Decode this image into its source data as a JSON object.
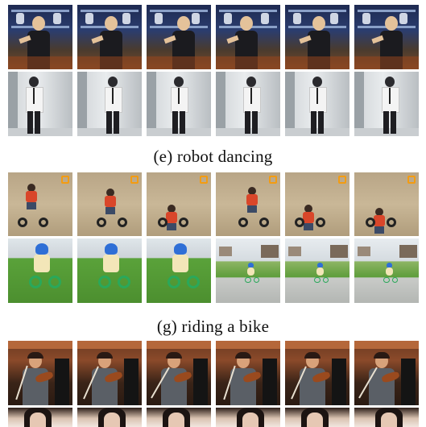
{
  "captions": {
    "robot_dancing": "(e) robot dancing",
    "riding_bike": "(g) riding a bike"
  },
  "rows": [
    {
      "clip": "lab",
      "frames": 6
    },
    {
      "clip": "hall",
      "frames": 6
    },
    {
      "clip": "dirt",
      "frames": 6
    },
    {
      "clip": "lawn",
      "frames": 6
    },
    {
      "clip": "room",
      "frames": 6
    },
    {
      "clip": "face",
      "frames": 6
    }
  ]
}
